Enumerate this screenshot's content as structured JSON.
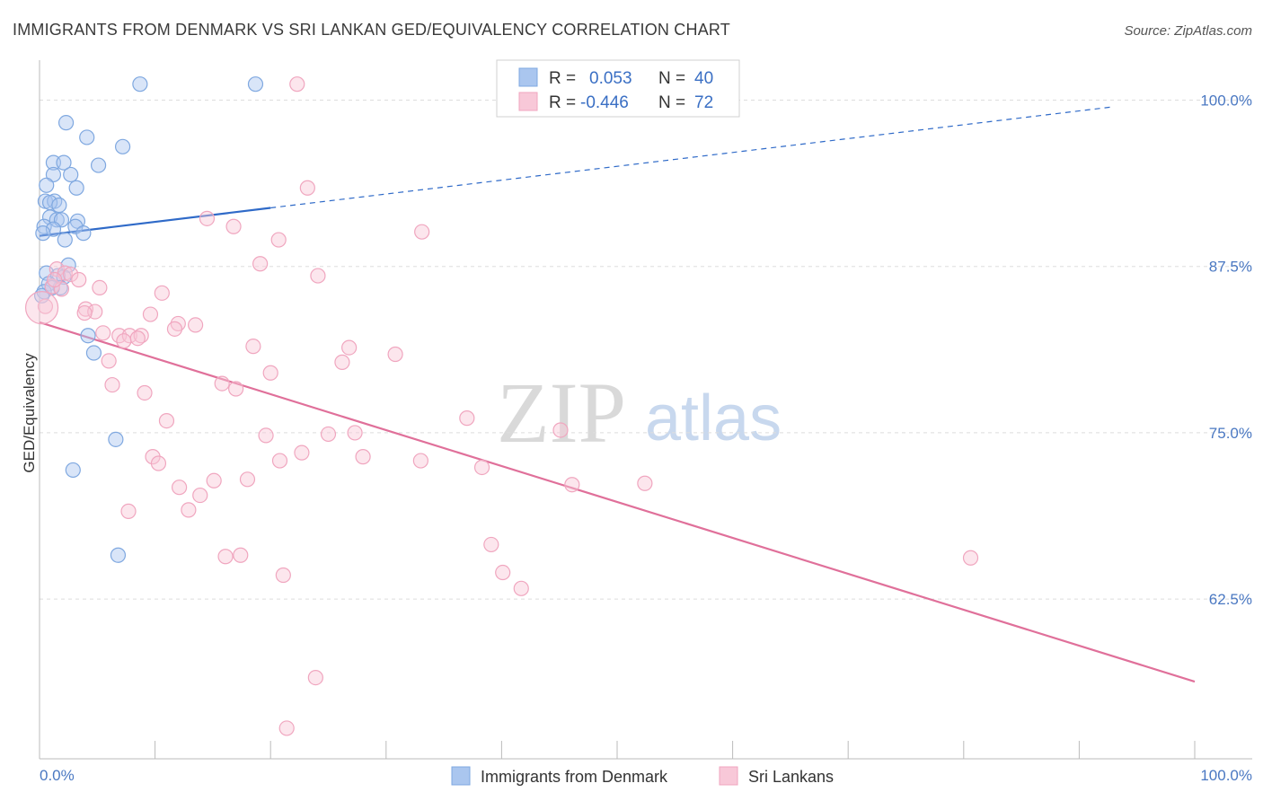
{
  "chart_data": {
    "type": "scatter",
    "title": "IMMIGRANTS FROM DENMARK VS SRI LANKAN GED/EQUIVALENCY CORRELATION CHART",
    "source": "Source: ZipAtlas.com",
    "ylabel": "GED/Equivalency",
    "xlabel": "",
    "xlim": [
      0,
      100
    ],
    "ylim": [
      50.5,
      103
    ],
    "x_tick_labels": [
      "0.0%",
      "100.0%"
    ],
    "x_tick_positions": [
      0,
      10,
      20,
      30,
      40,
      50,
      60,
      70,
      80,
      90,
      100
    ],
    "y_ticks": [
      {
        "value": 100.0,
        "label": "100.0%"
      },
      {
        "value": 87.5,
        "label": "87.5%"
      },
      {
        "value": 75.0,
        "label": "75.0%"
      },
      {
        "value": 62.5,
        "label": "62.5%"
      }
    ],
    "watermark": {
      "part1": "ZIP",
      "part2": "atlas"
    },
    "legend": {
      "r_label": "R =",
      "n_label": "N =",
      "entries": [
        {
          "r": "0.053",
          "n": "40"
        },
        {
          "r": "-0.446",
          "n": "72"
        }
      ]
    },
    "series": [
      {
        "name": "Immigrants from Denmark",
        "color": "#7fa8e0",
        "fill": "#aac6ef",
        "line_color": "#2f6ac8",
        "trend": {
          "x0": 0,
          "y0": 89.8,
          "x1": 20,
          "y1": 91.9,
          "dash_x1": 93,
          "dash_y1": 99.5
        },
        "points": [
          [
            8.7,
            101.2
          ],
          [
            18.7,
            101.2
          ],
          [
            2.3,
            98.3
          ],
          [
            4.1,
            97.2
          ],
          [
            7.2,
            96.5
          ],
          [
            1.2,
            95.3
          ],
          [
            2.1,
            95.3
          ],
          [
            5.1,
            95.1
          ],
          [
            2.7,
            94.4
          ],
          [
            1.2,
            94.4
          ],
          [
            3.2,
            93.4
          ],
          [
            0.5,
            92.4
          ],
          [
            1.3,
            92.4
          ],
          [
            0.9,
            92.3
          ],
          [
            1.7,
            92.1
          ],
          [
            0.6,
            93.6
          ],
          [
            0.9,
            91.2
          ],
          [
            1.5,
            91.0
          ],
          [
            1.9,
            91.0
          ],
          [
            3.3,
            90.9
          ],
          [
            0.4,
            90.5
          ],
          [
            1.2,
            90.3
          ],
          [
            3.1,
            90.5
          ],
          [
            3.8,
            90.0
          ],
          [
            0.3,
            90.0
          ],
          [
            2.2,
            89.5
          ],
          [
            2.5,
            87.6
          ],
          [
            0.6,
            87.0
          ],
          [
            1.6,
            86.8
          ],
          [
            2.1,
            86.7
          ],
          [
            0.8,
            86.2
          ],
          [
            1.8,
            85.9
          ],
          [
            0.4,
            85.6
          ],
          [
            1.1,
            85.9
          ],
          [
            0.2,
            85.3
          ],
          [
            4.2,
            82.3
          ],
          [
            4.7,
            81.0
          ],
          [
            6.6,
            74.5
          ],
          [
            2.9,
            72.2
          ],
          [
            6.8,
            65.8
          ]
        ]
      },
      {
        "name": "Sri Lankans",
        "color": "#f0a6bf",
        "fill": "#f8c8d8",
        "line_color": "#e0709a",
        "trend": {
          "x0": 0,
          "y0": 83.3,
          "x1": 100,
          "y1": 56.3
        },
        "points": [
          [
            22.3,
            101.2
          ],
          [
            23.2,
            93.4
          ],
          [
            14.5,
            91.1
          ],
          [
            16.8,
            90.5
          ],
          [
            20.7,
            89.5
          ],
          [
            33.1,
            90.1
          ],
          [
            19.1,
            87.7
          ],
          [
            24.1,
            86.8
          ],
          [
            1.5,
            87.3
          ],
          [
            2.2,
            87.0
          ],
          [
            2.7,
            86.9
          ],
          [
            3.4,
            86.5
          ],
          [
            1.1,
            86.0
          ],
          [
            1.9,
            85.8
          ],
          [
            5.2,
            85.9
          ],
          [
            10.6,
            85.5
          ],
          [
            0.5,
            84.5
          ],
          [
            4.0,
            84.3
          ],
          [
            4.8,
            84.1
          ],
          [
            3.9,
            84.0
          ],
          [
            9.6,
            83.9
          ],
          [
            12.0,
            83.2
          ],
          [
            13.5,
            83.1
          ],
          [
            11.7,
            82.8
          ],
          [
            5.5,
            82.5
          ],
          [
            6.9,
            82.3
          ],
          [
            7.8,
            82.3
          ],
          [
            8.8,
            82.3
          ],
          [
            7.3,
            81.9
          ],
          [
            8.5,
            82.1
          ],
          [
            18.5,
            81.5
          ],
          [
            26.8,
            81.4
          ],
          [
            30.8,
            80.9
          ],
          [
            6.0,
            80.4
          ],
          [
            26.2,
            80.3
          ],
          [
            20.0,
            79.5
          ],
          [
            6.3,
            78.6
          ],
          [
            15.8,
            78.7
          ],
          [
            17.0,
            78.3
          ],
          [
            9.1,
            78.0
          ],
          [
            37.0,
            76.1
          ],
          [
            11.0,
            75.9
          ],
          [
            19.6,
            74.8
          ],
          [
            25.0,
            74.9
          ],
          [
            27.3,
            75.0
          ],
          [
            45.1,
            75.2
          ],
          [
            22.7,
            73.5
          ],
          [
            28.0,
            73.2
          ],
          [
            9.8,
            73.2
          ],
          [
            10.3,
            72.7
          ],
          [
            20.8,
            72.9
          ],
          [
            33.0,
            72.9
          ],
          [
            38.3,
            72.4
          ],
          [
            15.1,
            71.4
          ],
          [
            18.0,
            71.5
          ],
          [
            12.1,
            70.9
          ],
          [
            13.9,
            70.3
          ],
          [
            46.1,
            71.1
          ],
          [
            52.4,
            71.2
          ],
          [
            7.7,
            69.1
          ],
          [
            12.9,
            69.2
          ],
          [
            39.1,
            66.6
          ],
          [
            16.1,
            65.7
          ],
          [
            17.4,
            65.8
          ],
          [
            80.6,
            65.6
          ],
          [
            21.1,
            64.3
          ],
          [
            40.1,
            64.5
          ],
          [
            41.7,
            63.3
          ],
          [
            23.9,
            56.6
          ],
          [
            21.4,
            52.8
          ],
          [
            0.2,
            84.4
          ],
          [
            1.3,
            86.5
          ]
        ]
      }
    ]
  }
}
